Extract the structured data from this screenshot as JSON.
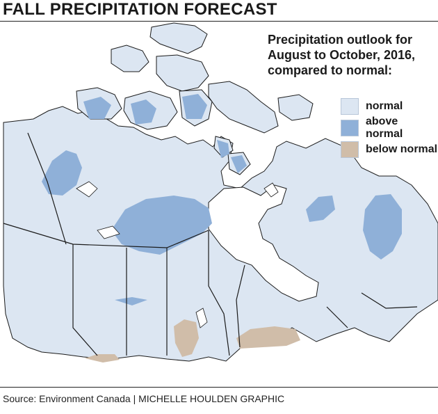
{
  "header": {
    "title": "FALL PRECIPITATION FORECAST"
  },
  "outlook": {
    "lines": [
      "Precipitation outlook for",
      "August to October, 2016,",
      "compared to normal:"
    ]
  },
  "legend": [
    {
      "label": "normal",
      "color": "#dce6f2"
    },
    {
      "label": "above normal",
      "color": "#8fb0d8"
    },
    {
      "label": "below normal",
      "color": "#d0bda9"
    }
  ],
  "colors": {
    "normal": "#dce6f2",
    "above_normal": "#8fb0d8",
    "below_normal": "#d0bda9",
    "water": "#ffffff",
    "border": "#1a1a1a"
  },
  "footer": {
    "source": "Source: Environment Canada",
    "separator": "|",
    "credit": "MICHELLE HOULDEN GRAPHIC"
  }
}
